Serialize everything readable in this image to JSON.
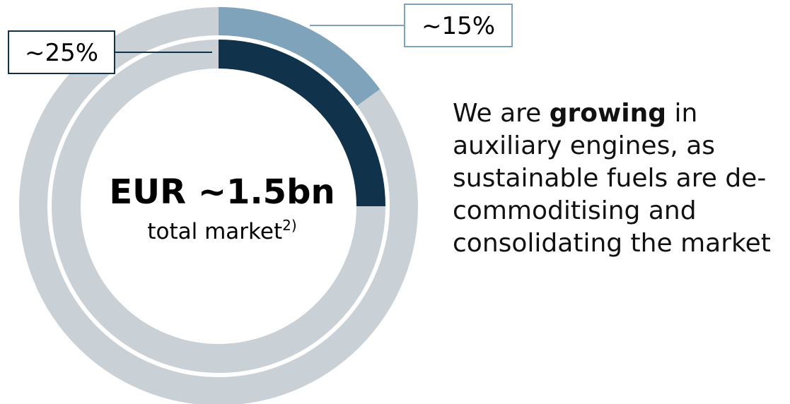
{
  "chart_data": {
    "type": "donut",
    "center_title": "EUR ~1.5bn",
    "center_subtitle": "total market",
    "center_note": "2)",
    "series": [
      {
        "color": "#7fa3ba",
        "values": [
          15
        ],
        "value_labels": [
          "~15%"
        ],
        "label_border": "#7fa3ba"
      },
      {
        "color": "#10324a",
        "values": [
          25
        ],
        "value_labels": [
          "~25%"
        ],
        "label_border": "#10324a"
      }
    ],
    "track_color": "#c9d0d6",
    "annotation": [
      "We are ",
      "growing",
      " in auxiliary engines, as sustainable fuels are de-commoditising and consolidating the market"
    ]
  }
}
